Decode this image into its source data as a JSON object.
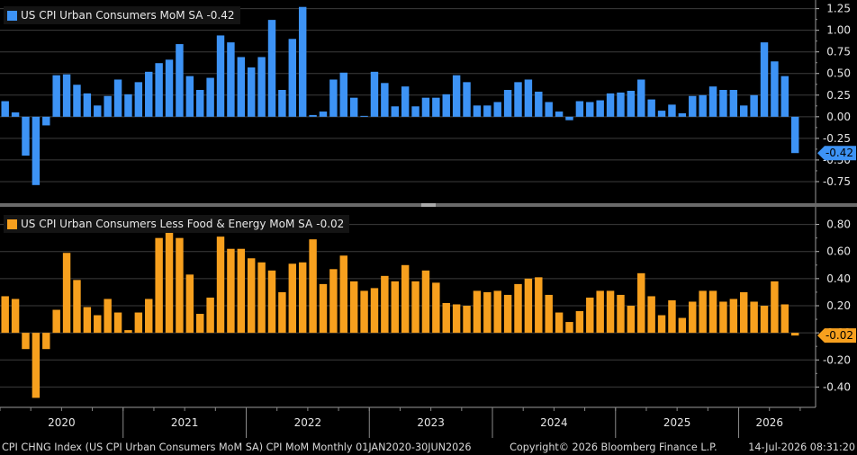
{
  "chart_data": [
    {
      "type": "bar",
      "legend": "US CPI Urban Consumers MoM SA",
      "last_value": -0.42,
      "last_label": "-0.42",
      "color": "#3d93f5",
      "ylim": [
        -1.0,
        1.35
      ],
      "yticks": [
        -0.75,
        -0.5,
        -0.25,
        0.0,
        0.25,
        0.5,
        0.75,
        1.0,
        1.25
      ],
      "ytick_labels": [
        "-0.75",
        "-0.50",
        "-0.25",
        "0.00",
        "0.25",
        "0.50",
        "0.75",
        "1.00",
        "1.25"
      ],
      "values": [
        0.18,
        0.05,
        -0.45,
        -0.79,
        -0.1,
        0.48,
        0.49,
        0.37,
        0.27,
        0.13,
        0.24,
        0.43,
        0.26,
        0.4,
        0.52,
        0.62,
        0.66,
        0.84,
        0.47,
        0.31,
        0.45,
        0.94,
        0.86,
        0.69,
        0.57,
        0.69,
        1.12,
        0.31,
        0.9,
        1.27,
        0.02,
        0.06,
        0.43,
        0.51,
        0.22,
        0.01,
        0.52,
        0.39,
        0.12,
        0.35,
        0.12,
        0.22,
        0.22,
        0.26,
        0.48,
        0.4,
        0.13,
        0.13,
        0.17,
        0.31,
        0.4,
        0.43,
        0.29,
        0.17,
        0.06,
        -0.04,
        0.18,
        0.17,
        0.19,
        0.27,
        0.28,
        0.3,
        0.43,
        0.2,
        0.07,
        0.14,
        0.04,
        0.24,
        0.25,
        0.35,
        0.31,
        0.31,
        0.13,
        0.25,
        0.86,
        0.64,
        0.47,
        -0.42
      ]
    },
    {
      "type": "bar",
      "legend": "US CPI Urban Consumers Less Food & Energy MoM SA",
      "last_value": -0.02,
      "last_label": "-0.02",
      "color": "#f7a01e",
      "ylim": [
        -0.55,
        0.93
      ],
      "yticks": [
        -0.4,
        -0.2,
        0.0,
        0.2,
        0.4,
        0.6,
        0.8
      ],
      "ytick_labels": [
        "-0.40",
        "-0.20",
        "0.00",
        "0.20",
        "0.40",
        "0.60",
        "0.80"
      ],
      "values": [
        0.27,
        0.25,
        -0.12,
        -0.48,
        -0.12,
        0.17,
        0.59,
        0.39,
        0.19,
        0.13,
        0.25,
        0.15,
        0.02,
        0.15,
        0.25,
        0.7,
        0.81,
        0.7,
        0.43,
        0.14,
        0.26,
        0.71,
        0.62,
        0.62,
        0.55,
        0.52,
        0.46,
        0.3,
        0.51,
        0.52,
        0.69,
        0.36,
        0.47,
        0.57,
        0.38,
        0.31,
        0.33,
        0.42,
        0.38,
        0.5,
        0.38,
        0.46,
        0.37,
        0.22,
        0.21,
        0.2,
        0.31,
        0.3,
        0.31,
        0.28,
        0.36,
        0.4,
        0.41,
        0.28,
        0.15,
        0.08,
        0.16,
        0.26,
        0.31,
        0.31,
        0.28,
        0.2,
        0.44,
        0.27,
        0.13,
        0.24,
        0.11,
        0.23,
        0.31,
        0.31,
        0.23,
        0.25,
        0.3,
        0.23,
        0.2,
        0.38,
        0.21,
        -0.02
      ]
    }
  ],
  "x_axis": {
    "start": "2020-01",
    "end": "2026-06",
    "year_labels": [
      "2020",
      "2021",
      "2022",
      "2023",
      "2024",
      "2025",
      "2026"
    ]
  },
  "footer": {
    "left": "CPI CHNG Index (US CPI Urban Consumers MoM SA) CPI MoM Monthly 01JAN2020-30JUN2026",
    "middle": "Copyright© 2026 Bloomberg Finance L.P.",
    "right": "14-Jul-2026 08:31:20"
  }
}
